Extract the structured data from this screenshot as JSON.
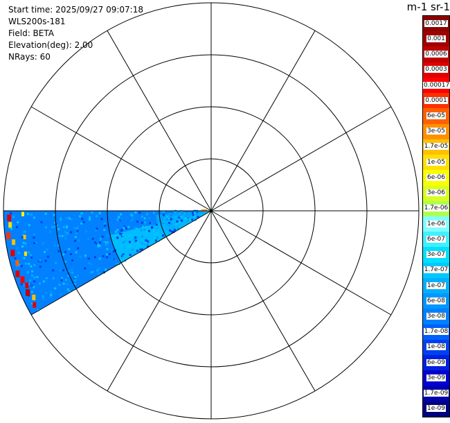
{
  "info": {
    "start_time": "Start time: 2025/09/27 09:07:18",
    "instrument": "WLS200s-181",
    "field": "Field: BETA",
    "elevation": "Elevation(deg): 2.00",
    "nrays": "NRays: 60"
  },
  "colorbar": {
    "unit_label": "m-1 sr-1",
    "ticks": [
      "0.0017",
      "0.001",
      "0.0006",
      "0.0003",
      "0.00017",
      "0.0001",
      "6e-05",
      "3e-05",
      "1.7e-05",
      "1e-05",
      "6e-06",
      "3e-06",
      "1.7e-06",
      "1e-06",
      "6e-07",
      "3e-07",
      "1.7e-07",
      "1e-07",
      "6e-08",
      "3e-08",
      "1.7e-08",
      "1e-08",
      "6e-09",
      "3e-09",
      "1.7e-09",
      "1e-09"
    ],
    "colors": [
      "#8b0000",
      "#a00000",
      "#c00000",
      "#e00000",
      "#ff0000",
      "#ff3000",
      "#ff6000",
      "#ff9000",
      "#ffc000",
      "#ffe000",
      "#f8ff00",
      "#d8ff20",
      "#b0ff50",
      "#80ffff",
      "#40f0ff",
      "#00e0ff",
      "#00c8ff",
      "#00b0ff",
      "#0098ff",
      "#0080ff",
      "#0060ff",
      "#0040f0",
      "#0020e0",
      "#0000d0",
      "#0000a8",
      "#000080"
    ]
  },
  "chart_data": {
    "type": "ppi",
    "title": "",
    "field": "BETA",
    "units": "m-1 sr-1",
    "elevation_deg": 2.0,
    "nrays": 60,
    "range_rings": 4,
    "azimuth_spokes_deg": [
      0,
      30,
      60,
      90,
      120,
      150,
      180,
      210,
      240,
      270,
      300,
      330
    ],
    "sector": {
      "azimuth_start_deg": 240,
      "azimuth_end_deg": 270,
      "typical_value": "3e-08",
      "near_range_value": "1e-07",
      "outer_edge_max_value": "0.0003"
    }
  }
}
